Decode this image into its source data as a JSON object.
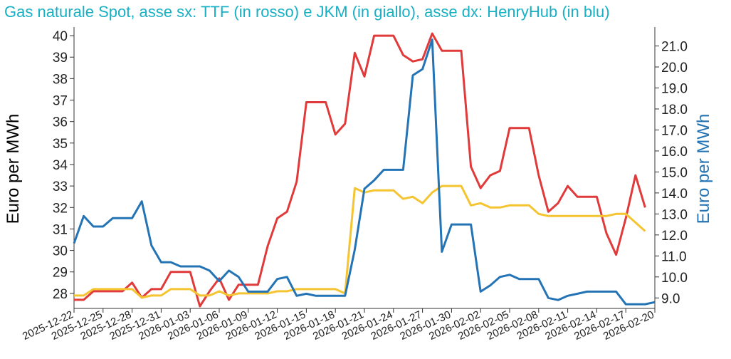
{
  "chart_data": {
    "type": "line",
    "title": "Gas naturale Spot, asse sx: TTF (in rosso) e JKM (in giallo), asse dx: HenryHub (in blu)",
    "ylabel_left": "Euro per MWh",
    "ylabel_right": "Euro per MWh",
    "ylim_left": [
      27.3,
      40.4
    ],
    "ylim_right": [
      8.5,
      21.9
    ],
    "yticks_left": [
      "28",
      "29",
      "30",
      "31",
      "32",
      "33",
      "34",
      "35",
      "36",
      "37",
      "38",
      "39",
      "40"
    ],
    "yticks_right": [
      "9.0",
      "10.0",
      "11.0",
      "12.0",
      "13.0",
      "14.0",
      "15.0",
      "16.0",
      "17.0",
      "18.0",
      "19.0",
      "20.0",
      "21.0"
    ],
    "x_start": "2025-12-22",
    "x_end": "2026-02-20",
    "x_tick_labels": [
      "2025-12-22",
      "2025-12-25",
      "2025-12-28",
      "2025-12-31",
      "2026-01-03",
      "2026-01-06",
      "2026-01-09",
      "2026-01-12",
      "2026-01-15",
      "2026-01-18",
      "2026-01-21",
      "2026-01-24",
      "2026-01-27",
      "2026-01-30",
      "2026-02-02",
      "2026-02-05",
      "2026-02-08",
      "2026-02-11",
      "2026-02-14",
      "2026-02-17",
      "2026-02-20"
    ],
    "series": [
      {
        "name": "TTF",
        "axis": "left",
        "color": "#e03a3a",
        "points": [
          [
            "2025-12-22",
            27.7
          ],
          [
            "2025-12-23",
            27.7
          ],
          [
            "2025-12-24",
            28.1
          ],
          [
            "2025-12-25",
            28.1
          ],
          [
            "2025-12-26",
            28.1
          ],
          [
            "2025-12-27",
            28.1
          ],
          [
            "2025-12-28",
            28.5
          ],
          [
            "2025-12-29",
            27.8
          ],
          [
            "2025-12-30",
            28.2
          ],
          [
            "2025-12-31",
            28.2
          ],
          [
            "2026-01-01",
            29.0
          ],
          [
            "2026-01-02",
            29.0
          ],
          [
            "2026-01-03",
            29.0
          ],
          [
            "2026-01-04",
            27.4
          ],
          [
            "2026-01-05",
            28.1
          ],
          [
            "2026-01-06",
            28.7
          ],
          [
            "2026-01-07",
            27.7
          ],
          [
            "2026-01-08",
            28.4
          ],
          [
            "2026-01-09",
            28.4
          ],
          [
            "2026-01-10",
            28.4
          ],
          [
            "2026-01-11",
            30.2
          ],
          [
            "2026-01-12",
            31.5
          ],
          [
            "2026-01-13",
            31.8
          ],
          [
            "2026-01-14",
            33.2
          ],
          [
            "2026-01-15",
            36.9
          ],
          [
            "2026-01-16",
            36.9
          ],
          [
            "2026-01-17",
            36.9
          ],
          [
            "2026-01-18",
            35.4
          ],
          [
            "2026-01-19",
            35.9
          ],
          [
            "2026-01-20",
            39.2
          ],
          [
            "2026-01-21",
            38.1
          ],
          [
            "2026-01-22",
            40.0
          ],
          [
            "2026-01-23",
            40.0
          ],
          [
            "2026-01-24",
            40.0
          ],
          [
            "2026-01-25",
            39.1
          ],
          [
            "2026-01-26",
            38.8
          ],
          [
            "2026-01-27",
            38.9
          ],
          [
            "2026-01-28",
            40.1
          ],
          [
            "2026-01-29",
            39.3
          ],
          [
            "2026-01-30",
            39.3
          ],
          [
            "2026-01-31",
            39.3
          ],
          [
            "2026-02-01",
            33.9
          ],
          [
            "2026-02-02",
            32.9
          ],
          [
            "2026-02-03",
            33.5
          ],
          [
            "2026-02-04",
            33.7
          ],
          [
            "2026-02-05",
            35.7
          ],
          [
            "2026-02-06",
            35.7
          ],
          [
            "2026-02-07",
            35.7
          ],
          [
            "2026-02-08",
            33.5
          ],
          [
            "2026-02-09",
            31.8
          ],
          [
            "2026-02-10",
            32.2
          ],
          [
            "2026-02-11",
            33.0
          ],
          [
            "2026-02-12",
            32.5
          ],
          [
            "2026-02-13",
            32.5
          ],
          [
            "2026-02-14",
            32.5
          ],
          [
            "2026-02-15",
            30.8
          ],
          [
            "2026-02-16",
            29.8
          ],
          [
            "2026-02-17",
            31.5
          ],
          [
            "2026-02-18",
            33.5
          ],
          [
            "2026-02-19",
            32.0
          ]
        ]
      },
      {
        "name": "JKM",
        "axis": "left",
        "color": "#f5c431",
        "points": [
          [
            "2025-12-22",
            27.9
          ],
          [
            "2025-12-23",
            27.9
          ],
          [
            "2025-12-24",
            28.2
          ],
          [
            "2025-12-25",
            28.2
          ],
          [
            "2025-12-26",
            28.2
          ],
          [
            "2025-12-27",
            28.2
          ],
          [
            "2025-12-28",
            28.2
          ],
          [
            "2025-12-29",
            27.8
          ],
          [
            "2025-12-30",
            27.9
          ],
          [
            "2025-12-31",
            27.9
          ],
          [
            "2026-01-01",
            28.2
          ],
          [
            "2026-01-02",
            28.2
          ],
          [
            "2026-01-03",
            28.2
          ],
          [
            "2026-01-04",
            27.9
          ],
          [
            "2026-01-05",
            27.9
          ],
          [
            "2026-01-06",
            28.1
          ],
          [
            "2026-01-07",
            27.9
          ],
          [
            "2026-01-08",
            28.0
          ],
          [
            "2026-01-09",
            28.0
          ],
          [
            "2026-01-10",
            28.0
          ],
          [
            "2026-01-11",
            28.0
          ],
          [
            "2026-01-12",
            28.1
          ],
          [
            "2026-01-13",
            28.1
          ],
          [
            "2026-01-14",
            28.2
          ],
          [
            "2026-01-15",
            28.2
          ],
          [
            "2026-01-16",
            28.2
          ],
          [
            "2026-01-17",
            28.2
          ],
          [
            "2026-01-18",
            28.2
          ],
          [
            "2026-01-19",
            28.0
          ],
          [
            "2026-01-20",
            32.9
          ],
          [
            "2026-01-21",
            32.7
          ],
          [
            "2026-01-22",
            32.8
          ],
          [
            "2026-01-23",
            32.8
          ],
          [
            "2026-01-24",
            32.8
          ],
          [
            "2026-01-25",
            32.4
          ],
          [
            "2026-01-26",
            32.5
          ],
          [
            "2026-01-27",
            32.2
          ],
          [
            "2026-01-28",
            32.7
          ],
          [
            "2026-01-29",
            33.0
          ],
          [
            "2026-01-30",
            33.0
          ],
          [
            "2026-01-31",
            33.0
          ],
          [
            "2026-02-01",
            32.1
          ],
          [
            "2026-02-02",
            32.2
          ],
          [
            "2026-02-03",
            32.0
          ],
          [
            "2026-02-04",
            32.0
          ],
          [
            "2026-02-05",
            32.1
          ],
          [
            "2026-02-06",
            32.1
          ],
          [
            "2026-02-07",
            32.1
          ],
          [
            "2026-02-08",
            31.7
          ],
          [
            "2026-02-09",
            31.6
          ],
          [
            "2026-02-10",
            31.6
          ],
          [
            "2026-02-11",
            31.6
          ],
          [
            "2026-02-12",
            31.6
          ],
          [
            "2026-02-13",
            31.6
          ],
          [
            "2026-02-14",
            31.6
          ],
          [
            "2026-02-15",
            31.6
          ],
          [
            "2026-02-16",
            31.7
          ],
          [
            "2026-02-17",
            31.7
          ],
          [
            "2026-02-18",
            31.3
          ],
          [
            "2026-02-19",
            30.9
          ]
        ]
      },
      {
        "name": "HenryHub",
        "axis": "right",
        "color": "#2474b5",
        "points": [
          [
            "2025-12-22",
            11.6
          ],
          [
            "2025-12-23",
            12.9
          ],
          [
            "2025-12-24",
            12.4
          ],
          [
            "2025-12-25",
            12.4
          ],
          [
            "2025-12-26",
            12.8
          ],
          [
            "2025-12-27",
            12.8
          ],
          [
            "2025-12-28",
            12.8
          ],
          [
            "2025-12-29",
            13.6
          ],
          [
            "2025-12-30",
            11.5
          ],
          [
            "2025-12-31",
            10.7
          ],
          [
            "2026-01-01",
            10.7
          ],
          [
            "2026-01-02",
            10.5
          ],
          [
            "2026-01-03",
            10.5
          ],
          [
            "2026-01-04",
            10.5
          ],
          [
            "2026-01-05",
            10.3
          ],
          [
            "2026-01-06",
            9.8
          ],
          [
            "2026-01-07",
            10.3
          ],
          [
            "2026-01-08",
            10.0
          ],
          [
            "2026-01-09",
            9.3
          ],
          [
            "2026-01-10",
            9.3
          ],
          [
            "2026-01-11",
            9.3
          ],
          [
            "2026-01-12",
            9.9
          ],
          [
            "2026-01-13",
            10.0
          ],
          [
            "2026-01-14",
            9.1
          ],
          [
            "2026-01-15",
            9.2
          ],
          [
            "2026-01-16",
            9.1
          ],
          [
            "2026-01-17",
            9.1
          ],
          [
            "2026-01-18",
            9.1
          ],
          [
            "2026-01-19",
            9.1
          ],
          [
            "2026-01-20",
            11.3
          ],
          [
            "2026-01-21",
            14.2
          ],
          [
            "2026-01-22",
            14.6
          ],
          [
            "2026-01-23",
            15.1
          ],
          [
            "2026-01-24",
            15.1
          ],
          [
            "2026-01-25",
            15.1
          ],
          [
            "2026-01-26",
            19.6
          ],
          [
            "2026-01-27",
            19.9
          ],
          [
            "2026-01-28",
            21.3
          ],
          [
            "2026-01-29",
            11.2
          ],
          [
            "2026-01-30",
            12.5
          ],
          [
            "2026-01-31",
            12.5
          ],
          [
            "2026-02-01",
            12.5
          ],
          [
            "2026-02-02",
            9.3
          ],
          [
            "2026-02-03",
            9.6
          ],
          [
            "2026-02-04",
            10.0
          ],
          [
            "2026-02-05",
            10.1
          ],
          [
            "2026-02-06",
            9.9
          ],
          [
            "2026-02-07",
            9.9
          ],
          [
            "2026-02-08",
            9.9
          ],
          [
            "2026-02-09",
            9.0
          ],
          [
            "2026-02-10",
            8.9
          ],
          [
            "2026-02-11",
            9.1
          ],
          [
            "2026-02-12",
            9.2
          ],
          [
            "2026-02-13",
            9.3
          ],
          [
            "2026-02-14",
            9.3
          ],
          [
            "2026-02-15",
            9.3
          ],
          [
            "2026-02-16",
            9.3
          ],
          [
            "2026-02-17",
            8.7
          ],
          [
            "2026-02-18",
            8.7
          ],
          [
            "2026-02-19",
            8.7
          ],
          [
            "2026-02-20",
            8.8
          ]
        ]
      }
    ]
  }
}
